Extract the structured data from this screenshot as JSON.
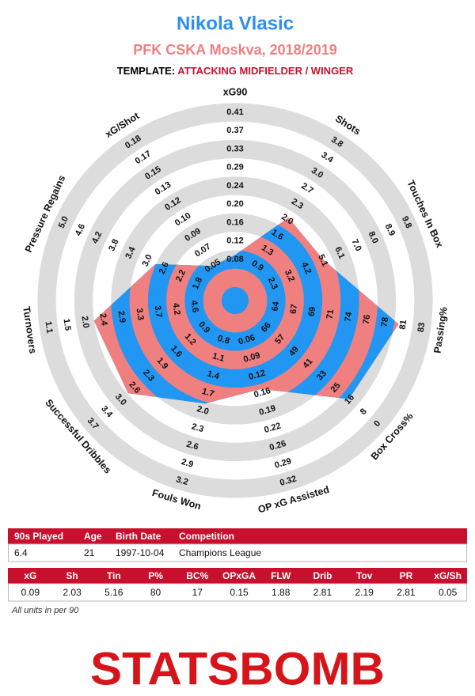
{
  "chart_data": {
    "type": "radar",
    "title": "Nikola Vlasic",
    "subtitle": "PFK CSKA Moskva, 2018/2019",
    "template_label": "TEMPLATE:",
    "template": "ATTACKING MIDFIELDER / WINGER",
    "categories": [
      "xG90",
      "Shots",
      "Touches In Box",
      "Passing%",
      "Box Cross%",
      "OP xG Assisted",
      "Fouls Won",
      "Successful Dribbles",
      "Turnovers",
      "Pressure Regains",
      "xG/Shot"
    ],
    "axis_ticks": [
      [
        0.08,
        0.12,
        0.16,
        {
          "value": 0.2,
          "label": "0.20"
        },
        0.24,
        0.29,
        0.33,
        0.37,
        0.41
      ],
      [
        0.9,
        1.3,
        1.6,
        {
          "value": 2,
          "label": "2.0"
        },
        2.3,
        2.7,
        {
          "value": 3,
          "label": "3.0"
        },
        3.4,
        3.8
      ],
      [
        2.3,
        3.2,
        4.2,
        5.1,
        6.1,
        {
          "value": 7,
          "label": "7.0"
        },
        {
          "value": 8,
          "label": "8.0"
        },
        8.9,
        9.8
      ],
      [
        64,
        67,
        69,
        71,
        74,
        76,
        78,
        81,
        83
      ],
      [
        66,
        57,
        49,
        41,
        33,
        25,
        16,
        8,
        0
      ],
      [
        0.06,
        0.09,
        0.12,
        0.16,
        0.19,
        0.22,
        0.26,
        0.29,
        0.32
      ],
      [
        0.8,
        1.1,
        1.4,
        1.7,
        {
          "value": 2,
          "label": "2.0"
        },
        2.3,
        2.6,
        2.9,
        3.2
      ],
      [
        0.9,
        1.2,
        1.6,
        1.9,
        2.3,
        2.6,
        {
          "value": 3,
          "label": "3.0"
        },
        3.4,
        3.7
      ],
      [
        4.6,
        4.2,
        3.7,
        3.3,
        2.9,
        2.4,
        {
          "value": 2,
          "label": "2.0"
        },
        1.5,
        1.1
      ],
      [
        1.8,
        2.2,
        2.6,
        {
          "value": 3,
          "label": "3.0"
        },
        3.4,
        3.8,
        4.2,
        4.6,
        {
          "value": 5,
          "label": "5.0"
        }
      ],
      [
        0.05,
        0.07,
        0.09,
        {
          "value": 0.1,
          "label": "0.10"
        },
        0.12,
        0.13,
        0.15,
        0.17,
        0.18
      ]
    ],
    "values": [
      0.09,
      2.03,
      5.16,
      80,
      17,
      0.15,
      1.88,
      2.81,
      2.19,
      2.81,
      0.05
    ],
    "color": "#2196f3",
    "color2": "#f08080"
  },
  "info_table": {
    "headers": [
      "90s Played",
      "Age",
      "Birth Date",
      "Competition"
    ],
    "row": [
      "6.4",
      "21",
      "1997-10-04",
      "Champions League"
    ]
  },
  "stats_table": {
    "headers": [
      "xG",
      "Sh",
      "Tin",
      "P%",
      "BC%",
      "OPxGA",
      "FLW",
      "Drib",
      "Tov",
      "PR",
      "xG/Sh"
    ]
  },
  "footnote": "All units in per 90",
  "logo": "STATSBOMB"
}
